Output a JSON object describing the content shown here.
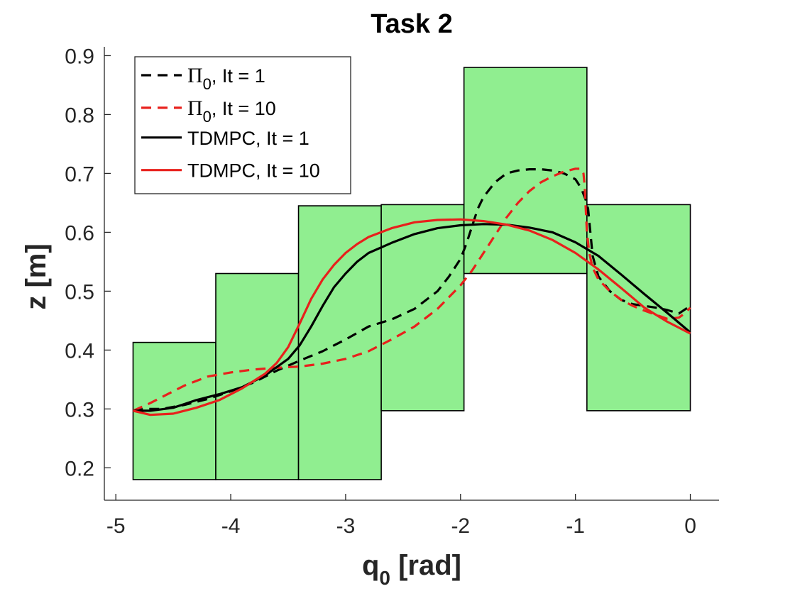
{
  "chart_data": {
    "type": "line",
    "title": "Task 2",
    "xlabel": {
      "main": "q",
      "sub": "0",
      "unit": " [rad]"
    },
    "ylabel": "z [m]",
    "xlim": [
      -5.1,
      0.25
    ],
    "ylim": [
      0.145,
      0.915
    ],
    "xticks": [
      -5,
      -4,
      -3,
      -2,
      -1,
      0
    ],
    "xtick_labels": [
      "-5",
      "-4",
      "-3",
      "-2",
      "-1",
      "0"
    ],
    "yticks": [
      0.2,
      0.3,
      0.4,
      0.5,
      0.6,
      0.7,
      0.8,
      0.9
    ],
    "ytick_labels": [
      "0.2",
      "0.3",
      "0.4",
      "0.5",
      "0.6",
      "0.7",
      "0.8",
      "0.9"
    ],
    "grid": false,
    "legend_position": "top-left",
    "region_color": "#90ee90",
    "regions": [
      {
        "x0": -4.85,
        "x1": -4.13,
        "y0": 0.18,
        "y1": 0.413
      },
      {
        "x0": -4.13,
        "x1": -3.41,
        "y0": 0.18,
        "y1": 0.53
      },
      {
        "x0": -3.41,
        "x1": -2.69,
        "y0": 0.18,
        "y1": 0.645
      },
      {
        "x0": -2.69,
        "x1": -1.97,
        "y0": 0.297,
        "y1": 0.647
      },
      {
        "x0": -1.97,
        "x1": -0.9,
        "y0": 0.53,
        "y1": 0.88
      },
      {
        "x0": -0.9,
        "x1": 0.0,
        "y0": 0.297,
        "y1": 0.647
      }
    ],
    "series": [
      {
        "name": "Π0, It = 1",
        "legend": {
          "symbol": "Π",
          "sub": "0",
          "rest": ", It = 1"
        },
        "color": "#000000",
        "dash": true,
        "x": [
          -4.85,
          -4.75,
          -4.6,
          -4.4,
          -4.2,
          -4.0,
          -3.8,
          -3.6,
          -3.4,
          -3.2,
          -3.0,
          -2.8,
          -2.6,
          -2.4,
          -2.2,
          -2.1,
          -2.0,
          -1.95,
          -1.9,
          -1.85,
          -1.8,
          -1.7,
          -1.6,
          -1.5,
          -1.4,
          -1.3,
          -1.2,
          -1.1,
          -1.0,
          -0.95,
          -0.91,
          -0.89,
          -0.88,
          -0.87,
          -0.85,
          -0.8,
          -0.7,
          -0.6,
          -0.5,
          -0.4,
          -0.3,
          -0.2,
          -0.1,
          0.0
        ],
        "y": [
          0.297,
          0.3,
          0.3,
          0.307,
          0.317,
          0.33,
          0.345,
          0.365,
          0.382,
          0.398,
          0.418,
          0.44,
          0.452,
          0.47,
          0.5,
          0.525,
          0.555,
          0.58,
          0.61,
          0.64,
          0.66,
          0.685,
          0.7,
          0.705,
          0.707,
          0.707,
          0.705,
          0.7,
          0.69,
          0.675,
          0.655,
          0.64,
          0.62,
          0.6,
          0.56,
          0.525,
          0.5,
          0.485,
          0.478,
          0.475,
          0.472,
          0.468,
          0.462,
          0.475
        ]
      },
      {
        "name": "Π0, It = 10",
        "legend": {
          "symbol": "Π",
          "sub": "0",
          "rest": ", It = 10"
        },
        "color": "#e8201c",
        "dash": true,
        "x": [
          -4.85,
          -4.7,
          -4.55,
          -4.4,
          -4.2,
          -4.0,
          -3.8,
          -3.6,
          -3.4,
          -3.2,
          -3.0,
          -2.8,
          -2.6,
          -2.4,
          -2.2,
          -2.0,
          -1.9,
          -1.8,
          -1.7,
          -1.6,
          -1.5,
          -1.4,
          -1.3,
          -1.2,
          -1.1,
          -1.0,
          -0.95,
          -0.93,
          -0.92,
          -0.91,
          -0.9,
          -0.88,
          -0.85,
          -0.8,
          -0.7,
          -0.6,
          -0.5,
          -0.4,
          -0.3,
          -0.2,
          -0.1,
          -0.05,
          0.0
        ],
        "y": [
          0.297,
          0.31,
          0.325,
          0.34,
          0.355,
          0.362,
          0.367,
          0.37,
          0.372,
          0.377,
          0.385,
          0.398,
          0.418,
          0.44,
          0.47,
          0.51,
          0.535,
          0.565,
          0.595,
          0.625,
          0.65,
          0.67,
          0.685,
          0.695,
          0.703,
          0.708,
          0.708,
          0.7,
          0.68,
          0.64,
          0.6,
          0.565,
          0.54,
          0.52,
          0.5,
          0.485,
          0.475,
          0.467,
          0.46,
          0.453,
          0.455,
          0.462,
          0.472
        ]
      },
      {
        "name": "TDMPC, It = 1",
        "legend": {
          "symbol": "",
          "sub": "",
          "rest": "TDMPC, It = 1"
        },
        "color": "#000000",
        "dash": false,
        "x": [
          -4.85,
          -4.7,
          -4.5,
          -4.3,
          -4.1,
          -3.9,
          -3.7,
          -3.5,
          -3.4,
          -3.3,
          -3.2,
          -3.1,
          -3.0,
          -2.9,
          -2.8,
          -2.6,
          -2.4,
          -2.2,
          -2.0,
          -1.8,
          -1.6,
          -1.4,
          -1.2,
          -1.0,
          -0.8,
          -0.6,
          -0.4,
          -0.2,
          0.0
        ],
        "y": [
          0.297,
          0.297,
          0.302,
          0.315,
          0.325,
          0.337,
          0.357,
          0.385,
          0.408,
          0.44,
          0.475,
          0.507,
          0.53,
          0.55,
          0.565,
          0.582,
          0.597,
          0.607,
          0.612,
          0.614,
          0.613,
          0.608,
          0.6,
          0.583,
          0.56,
          0.528,
          0.495,
          0.463,
          0.43
        ]
      },
      {
        "name": "TDMPC, It = 10",
        "legend": {
          "symbol": "",
          "sub": "",
          "rest": "TDMPC, It = 10"
        },
        "color": "#e8201c",
        "dash": false,
        "x": [
          -4.85,
          -4.7,
          -4.5,
          -4.3,
          -4.1,
          -3.9,
          -3.7,
          -3.6,
          -3.5,
          -3.4,
          -3.3,
          -3.2,
          -3.1,
          -3.0,
          -2.9,
          -2.8,
          -2.6,
          -2.4,
          -2.2,
          -2.0,
          -1.8,
          -1.6,
          -1.4,
          -1.2,
          -1.0,
          -0.8,
          -0.6,
          -0.4,
          -0.2,
          0.0
        ],
        "y": [
          0.297,
          0.29,
          0.292,
          0.302,
          0.315,
          0.335,
          0.36,
          0.378,
          0.405,
          0.445,
          0.487,
          0.52,
          0.545,
          0.565,
          0.58,
          0.592,
          0.607,
          0.617,
          0.621,
          0.622,
          0.619,
          0.613,
          0.603,
          0.587,
          0.565,
          0.537,
          0.505,
          0.472,
          0.448,
          0.428
        ]
      }
    ]
  }
}
